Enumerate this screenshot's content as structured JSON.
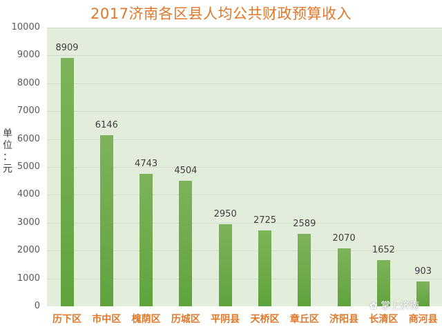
{
  "chart_data": {
    "type": "bar",
    "title": "2017济南各区县人均公共财政预算收入",
    "xlabel": "",
    "ylabel": "单位：元",
    "ylim": [
      0,
      10000
    ],
    "yticks": [
      0,
      1000,
      2000,
      3000,
      4000,
      5000,
      6000,
      7000,
      8000,
      9000,
      10000
    ],
    "grid": true,
    "categories": [
      "历下区",
      "市中区",
      "槐荫区",
      "历城区",
      "平阴县",
      "天桥区",
      "章丘区",
      "济阳县",
      "长清区",
      "商河县"
    ],
    "values": [
      8909,
      6146,
      4743,
      4504,
      2950,
      2725,
      2589,
      2070,
      1652,
      903
    ],
    "colors": {
      "bar": "#6aaa45",
      "plot_bg": "#e3eddc",
      "title": "#e0782a",
      "category_label": "#e0782a"
    }
  },
  "labels": {
    "title": "2017济南各区县人均公共财政预算收入",
    "ylabel_chars": [
      "单",
      "位",
      "：",
      "元"
    ],
    "yticks": [
      "0",
      "1000",
      "2000",
      "3000",
      "4000",
      "5000",
      "6000",
      "7000",
      "8000",
      "9000",
      "10000"
    ],
    "categories": [
      "历下区",
      "市中区",
      "槐荫区",
      "历城区",
      "平阴县",
      "天桥区",
      "章丘区",
      "济阳县",
      "长清区",
      "商河县"
    ],
    "values": [
      "8909",
      "6146",
      "4743",
      "4504",
      "2950",
      "2725",
      "2589",
      "2070",
      "1652",
      "903"
    ]
  },
  "watermark": {
    "icon": "wechat-icon",
    "text": "掌上济南"
  }
}
